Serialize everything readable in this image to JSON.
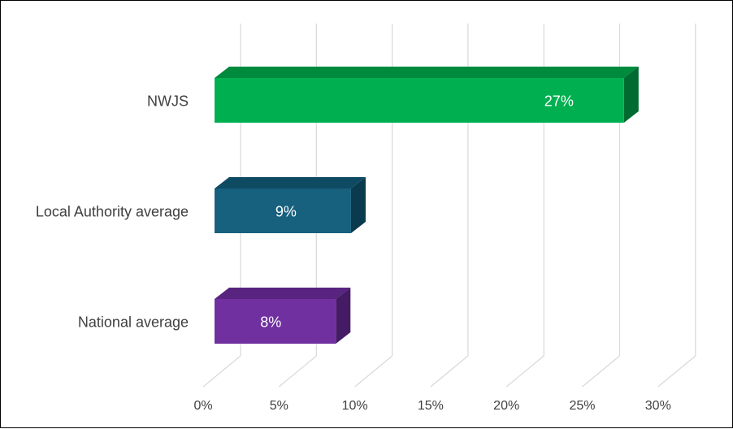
{
  "chart_data": {
    "type": "bar",
    "orientation": "horizontal",
    "style": "3d",
    "title": "",
    "xlabel": "",
    "ylabel": "",
    "categories": [
      "NWJS",
      "Local Authority average",
      "National average"
    ],
    "values": [
      27,
      9,
      8
    ],
    "data_labels": [
      "27%",
      "9%",
      "8%"
    ],
    "xlim": [
      0,
      30
    ],
    "x_ticks": [
      0,
      5,
      10,
      15,
      20,
      25,
      30
    ],
    "x_tick_labels": [
      "0%",
      "5%",
      "10%",
      "15%",
      "20%",
      "25%",
      "30%"
    ],
    "grid": true,
    "legend": "none",
    "colors": [
      {
        "front": "#00b050",
        "top": "#008a3e",
        "side": "#006b30"
      },
      {
        "front": "#17607e",
        "top": "#0f4a63",
        "side": "#0a3a4e"
      },
      {
        "front": "#7030a0",
        "top": "#58247f",
        "side": "#461b66"
      }
    ]
  }
}
